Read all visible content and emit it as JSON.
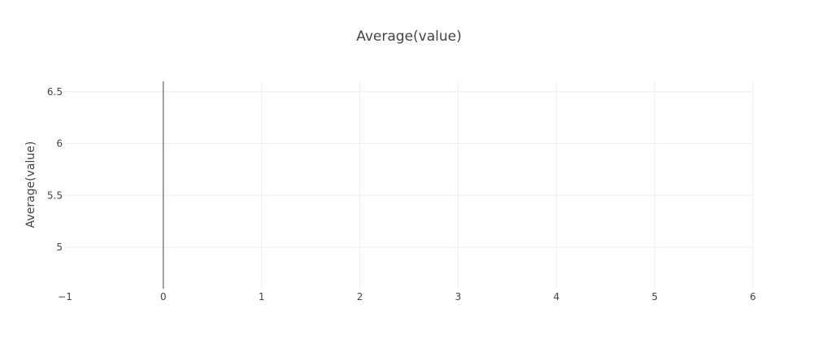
{
  "chart_data": {
    "type": "line",
    "title": "Average(value)",
    "xlabel": "",
    "ylabel": "Average(value)",
    "xlim": [
      -1,
      6
    ],
    "ylim": [
      4.6,
      6.6
    ],
    "x_ticks": [
      -1,
      0,
      1,
      2,
      3,
      4,
      5,
      6
    ],
    "x_tick_labels": [
      "−1",
      "0",
      "1",
      "2",
      "3",
      "4",
      "5",
      "6"
    ],
    "y_ticks": [
      5,
      5.5,
      6,
      6.5
    ],
    "y_tick_labels": [
      "5",
      "5.5",
      "6",
      "6.5"
    ],
    "grid": true,
    "zero_line_x": 0,
    "series": []
  },
  "colors": {
    "background": "#ffffff",
    "grid": "#eeeeee",
    "zero_line": "#444444",
    "text": "#444444",
    "title": "#444444"
  }
}
